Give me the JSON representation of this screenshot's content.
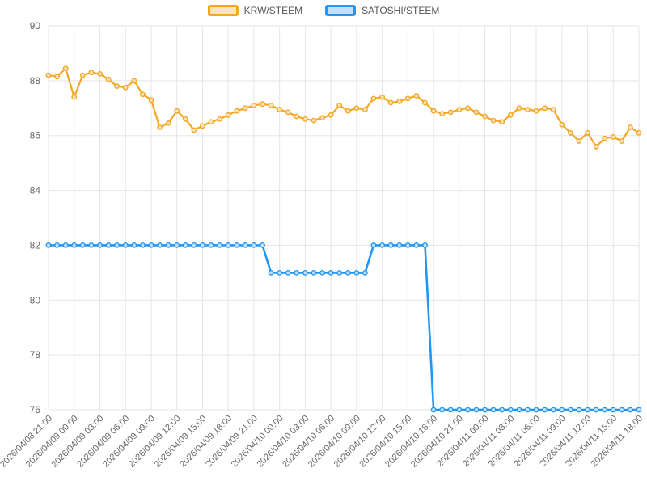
{
  "legend": {
    "items": [
      {
        "label": "KRW/STEEM"
      },
      {
        "label": "SATOSHI/STEEM"
      }
    ]
  },
  "chart_data": {
    "type": "line",
    "title": "",
    "xlabel": "",
    "ylabel": "",
    "ylim": [
      76,
      90
    ],
    "yticks": [
      76,
      78,
      80,
      82,
      84,
      86,
      88,
      90
    ],
    "grid": true,
    "legend_position": "top",
    "points_per_label": 3,
    "x_labels": [
      "2026/04/08 21:00",
      "2026/04/09 00:00",
      "2026/04/09 03:00",
      "2026/04/09 06:00",
      "2026/04/09 09:00",
      "2026/04/09 12:00",
      "2026/04/09 15:00",
      "2026/04/09 18:00",
      "2026/04/09 21:00",
      "2026/04/10 00:00",
      "2026/04/10 03:00",
      "2026/04/10 06:00",
      "2026/04/10 09:00",
      "2026/04/10 12:00",
      "2026/04/10 15:00",
      "2026/04/10 18:00",
      "2026/04/10 21:00",
      "2026/04/11 00:00",
      "2026/04/11 03:00",
      "2026/04/11 06:00",
      "2026/04/11 09:00",
      "2026/04/11 12:00",
      "2026/04/11 15:00",
      "2026/04/11 18:00"
    ],
    "series": [
      {
        "name": "KRW/STEEM",
        "color": "#f5a623",
        "fill": "#fbe3bd",
        "values": [
          88.2,
          88.15,
          88.45,
          87.4,
          88.2,
          88.3,
          88.25,
          88.05,
          87.8,
          87.75,
          88.0,
          87.5,
          87.3,
          86.3,
          86.45,
          86.9,
          86.6,
          86.2,
          86.35,
          86.5,
          86.6,
          86.75,
          86.9,
          87.0,
          87.1,
          87.15,
          87.1,
          86.95,
          86.85,
          86.7,
          86.6,
          86.55,
          86.65,
          86.75,
          87.1,
          86.9,
          87.0,
          86.95,
          87.35,
          87.4,
          87.2,
          87.25,
          87.35,
          87.45,
          87.2,
          86.9,
          86.8,
          86.85,
          86.95,
          87.0,
          86.85,
          86.7,
          86.55,
          86.5,
          86.75,
          87.0,
          86.95,
          86.9,
          87.0,
          86.95,
          86.4,
          86.1,
          85.8,
          86.1,
          85.6,
          85.9,
          85.95,
          85.8,
          86.3,
          86.1
        ]
      },
      {
        "name": "SATOSHI/STEEM",
        "color": "#2196f3",
        "fill": "#c3e0f8",
        "values": [
          82,
          82,
          82,
          82,
          82,
          82,
          82,
          82,
          82,
          82,
          82,
          82,
          82,
          82,
          82,
          82,
          82,
          82,
          82,
          82,
          82,
          82,
          82,
          82,
          82,
          82,
          81,
          81,
          81,
          81,
          81,
          81,
          81,
          81,
          81,
          81,
          81,
          81,
          82,
          82,
          82,
          82,
          82,
          82,
          82,
          76,
          76,
          76,
          76,
          76,
          76,
          76,
          76,
          76,
          76,
          76,
          76,
          76,
          76,
          76,
          76,
          76,
          76,
          76,
          76,
          76,
          76,
          76,
          76,
          76
        ]
      }
    ],
    "grid_color": "#e5e5e5",
    "tick_text_color": "#666666"
  }
}
